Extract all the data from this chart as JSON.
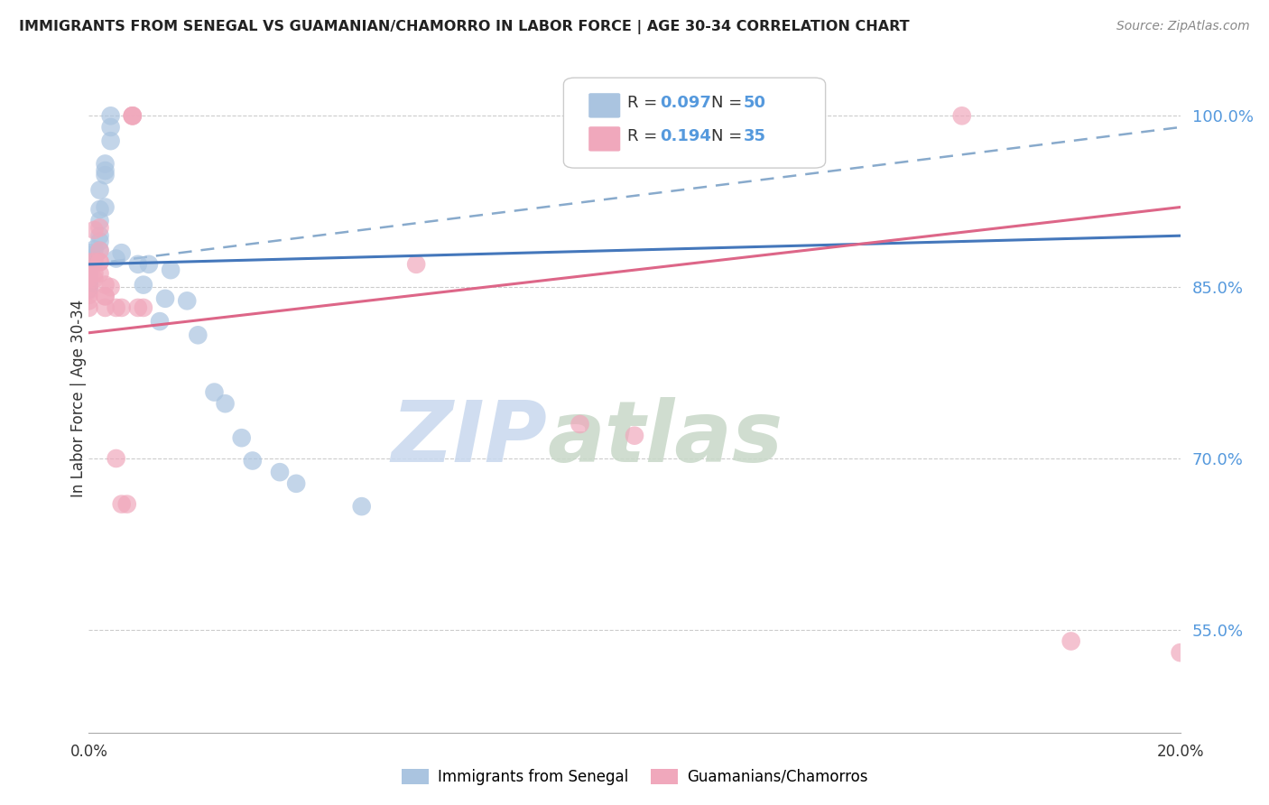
{
  "title": "IMMIGRANTS FROM SENEGAL VS GUAMANIAN/CHAMORRO IN LABOR FORCE | AGE 30-34 CORRELATION CHART",
  "source": "Source: ZipAtlas.com",
  "ylabel": "In Labor Force | Age 30-34",
  "xmin": 0.0,
  "xmax": 0.2,
  "ymin": 0.46,
  "ymax": 1.045,
  "yticks": [
    0.55,
    0.7,
    0.85,
    1.0
  ],
  "ytick_labels": [
    "55.0%",
    "70.0%",
    "85.0%",
    "100.0%"
  ],
  "color_blue": "#aac4e0",
  "color_pink": "#f0a8bc",
  "line_blue_color": "#4477bb",
  "line_pink_color": "#dd6688",
  "dashed_color": "#88aacc",
  "watermark_zip": "ZIP",
  "watermark_atlas": "atlas",
  "blue_points": [
    [
      0.0,
      0.88
    ],
    [
      0.0,
      0.878
    ],
    [
      0.0,
      0.875
    ],
    [
      0.0,
      0.872
    ],
    [
      0.0,
      0.87
    ],
    [
      0.0,
      0.868
    ],
    [
      0.0,
      0.865
    ],
    [
      0.0,
      0.863
    ],
    [
      0.0,
      0.862
    ],
    [
      0.0,
      0.86
    ],
    [
      0.0,
      0.858
    ],
    [
      0.0,
      0.856
    ],
    [
      0.0,
      0.854
    ],
    [
      0.0,
      0.852
    ],
    [
      0.0,
      0.85
    ],
    [
      0.0,
      0.848
    ],
    [
      0.001,
      0.883
    ],
    [
      0.001,
      0.875
    ],
    [
      0.001,
      0.872
    ],
    [
      0.002,
      0.895
    ],
    [
      0.002,
      0.89
    ],
    [
      0.002,
      0.882
    ],
    [
      0.002,
      0.935
    ],
    [
      0.002,
      0.918
    ],
    [
      0.002,
      0.908
    ],
    [
      0.003,
      0.948
    ],
    [
      0.003,
      0.92
    ],
    [
      0.003,
      0.958
    ],
    [
      0.003,
      0.952
    ],
    [
      0.004,
      0.978
    ],
    [
      0.004,
      1.0
    ],
    [
      0.004,
      0.99
    ],
    [
      0.005,
      0.875
    ],
    [
      0.006,
      0.88
    ],
    [
      0.009,
      0.87
    ],
    [
      0.01,
      0.852
    ],
    [
      0.011,
      0.87
    ],
    [
      0.013,
      0.82
    ],
    [
      0.014,
      0.84
    ],
    [
      0.015,
      0.865
    ],
    [
      0.018,
      0.838
    ],
    [
      0.02,
      0.808
    ],
    [
      0.023,
      0.758
    ],
    [
      0.025,
      0.748
    ],
    [
      0.028,
      0.718
    ],
    [
      0.03,
      0.698
    ],
    [
      0.035,
      0.688
    ],
    [
      0.038,
      0.678
    ],
    [
      0.05,
      0.658
    ]
  ],
  "pink_points": [
    [
      0.0,
      0.872
    ],
    [
      0.0,
      0.862
    ],
    [
      0.0,
      0.858
    ],
    [
      0.0,
      0.85
    ],
    [
      0.0,
      0.847
    ],
    [
      0.0,
      0.843
    ],
    [
      0.0,
      0.838
    ],
    [
      0.0,
      0.832
    ],
    [
      0.001,
      0.9
    ],
    [
      0.001,
      0.872
    ],
    [
      0.001,
      0.862
    ],
    [
      0.001,
      0.857
    ],
    [
      0.002,
      0.872
    ],
    [
      0.002,
      0.862
    ],
    [
      0.002,
      0.902
    ],
    [
      0.002,
      0.882
    ],
    [
      0.002,
      0.872
    ],
    [
      0.003,
      0.852
    ],
    [
      0.003,
      0.842
    ],
    [
      0.003,
      0.832
    ],
    [
      0.003,
      0.842
    ],
    [
      0.004,
      0.85
    ],
    [
      0.005,
      0.7
    ],
    [
      0.005,
      0.832
    ],
    [
      0.006,
      0.832
    ],
    [
      0.006,
      0.66
    ],
    [
      0.007,
      0.66
    ],
    [
      0.008,
      1.0
    ],
    [
      0.008,
      1.0
    ],
    [
      0.008,
      1.0
    ],
    [
      0.009,
      0.832
    ],
    [
      0.01,
      0.832
    ],
    [
      0.06,
      0.87
    ],
    [
      0.09,
      0.73
    ],
    [
      0.1,
      0.72
    ],
    [
      0.13,
      1.0
    ],
    [
      0.16,
      1.0
    ],
    [
      0.18,
      0.54
    ],
    [
      0.2,
      0.53
    ]
  ],
  "blue_line": {
    "x0": 0.0,
    "y0": 0.87,
    "x1": 0.2,
    "y1": 0.895
  },
  "pink_line": {
    "x0": 0.0,
    "y0": 0.81,
    "x1": 0.2,
    "y1": 0.92
  },
  "dashed_line": {
    "x0": 0.0,
    "y0": 0.87,
    "x1": 0.2,
    "y1": 0.99
  }
}
